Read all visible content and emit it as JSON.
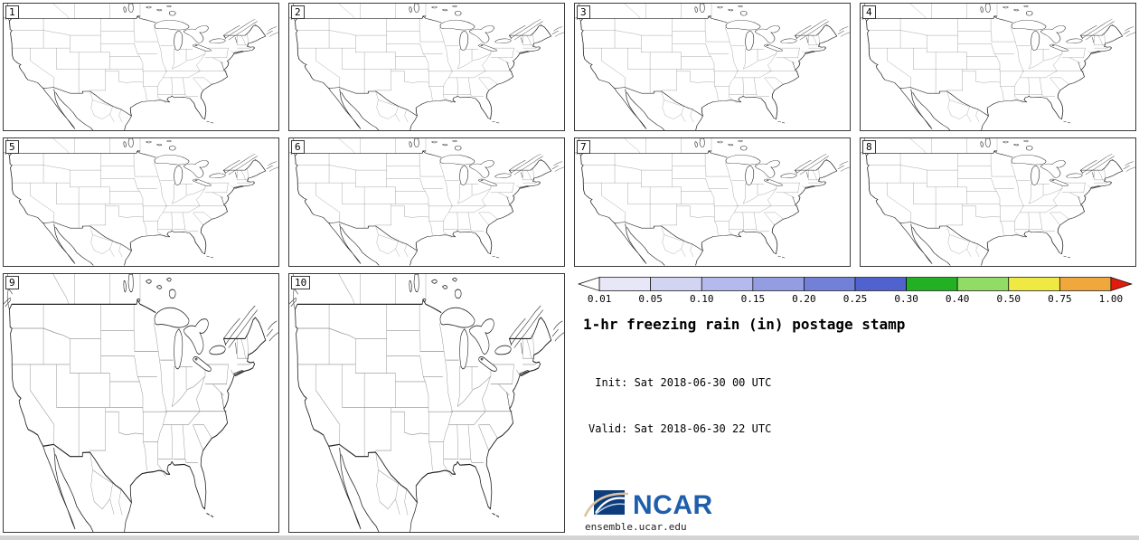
{
  "panels": [
    {
      "label": "1"
    },
    {
      "label": "2"
    },
    {
      "label": "3"
    },
    {
      "label": "4"
    },
    {
      "label": "5"
    },
    {
      "label": "6"
    },
    {
      "label": "7"
    },
    {
      "label": "8"
    },
    {
      "label": "9"
    },
    {
      "label": "10"
    }
  ],
  "legend": {
    "ticks": [
      "0.01",
      "0.05",
      "0.10",
      "0.15",
      "0.20",
      "0.25",
      "0.30",
      "0.40",
      "0.50",
      "0.75",
      "1.00"
    ],
    "segment_colors": [
      "#e7e7f8",
      "#d2d4f2",
      "#b4baec",
      "#959de2",
      "#7380d8",
      "#5062ce",
      "#22b122",
      "#90dc64",
      "#f0e843",
      "#f0a73c"
    ],
    "arrow_left_color": "#ffffff",
    "arrow_right_color": "#e11c0e"
  },
  "info": {
    "title": "1-hr freezing rain (in) postage stamp",
    "init_line": " Init: Sat 2018-06-30 00 UTC",
    "valid_line": "Valid: Sat 2018-06-30 22 UTC"
  },
  "branding": {
    "logo_text": "NCAR",
    "site": "ensemble.ucar.edu",
    "logo_text_color": "#1e5fad",
    "logo_box_color": "#0d3d7c"
  }
}
